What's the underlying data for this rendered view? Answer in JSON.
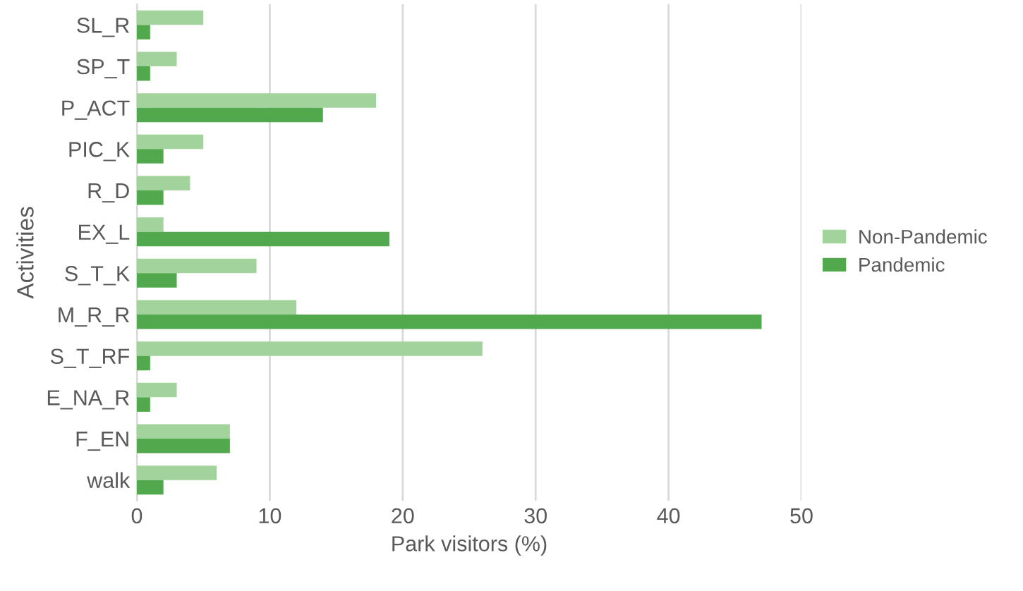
{
  "chart_data": {
    "type": "bar",
    "orientation": "horizontal",
    "xlabel": "Park visitors (%)",
    "ylabel": "Activities",
    "categories": [
      "SL_R",
      "SP_T",
      "P_ACT",
      "PIC_K",
      "R_D",
      "EX_L",
      "S_T_K",
      "M_R_R",
      "S_T_RF",
      "E_NA_R",
      "F_EN",
      "walk"
    ],
    "series": [
      {
        "name": "Non-Pandemic",
        "color": "#a3d39c",
        "values": [
          5,
          3,
          18,
          5,
          4,
          2,
          9,
          12,
          26,
          3,
          7,
          6
        ]
      },
      {
        "name": "Pandemic",
        "color": "#52a84c",
        "values": [
          1,
          1,
          14,
          2,
          2,
          19,
          3,
          47,
          1,
          1,
          7,
          2
        ]
      }
    ],
    "xlim": [
      0,
      50
    ],
    "xticks": [
      0,
      10,
      20,
      30,
      40,
      50
    ],
    "grid": "x",
    "legend": "right"
  }
}
